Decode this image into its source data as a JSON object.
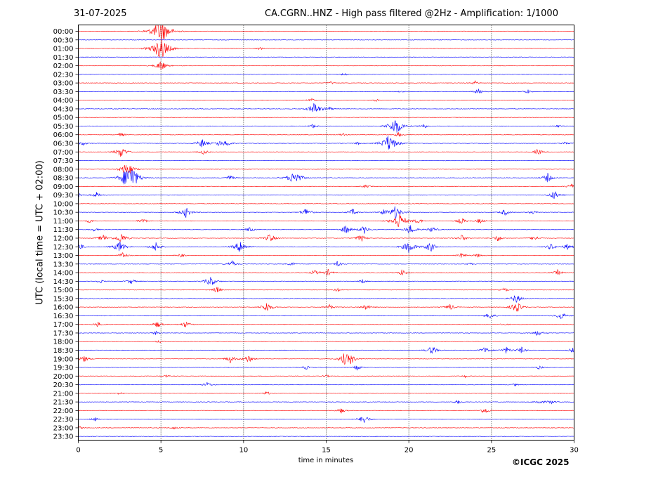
{
  "header": {
    "date": "31-07-2025",
    "title": "CA.CGRN..HNZ - High pass filtered @2Hz - Amplification: 1/1000"
  },
  "footer": {
    "copyright": "©ICGC 2025"
  },
  "colors": {
    "red_trace": "#ff0000",
    "blue_trace": "#0000ff",
    "axis": "#000000"
  },
  "chart_data": {
    "type": "line",
    "title": "CA.CGRN..HNZ - High pass filtered @2Hz - Amplification: 1/1000",
    "xlabel": "time in minutes",
    "ylabel": "UTC (local time = UTC + 02:00)",
    "xlim": [
      0,
      30
    ],
    "x_ticks": [
      0,
      5,
      10,
      15,
      20,
      25,
      30
    ],
    "x_tick_labels": [
      "0",
      "5",
      "10",
      "15",
      "20",
      "25",
      "30"
    ],
    "grid": "vertical dotted lines at 5-minute ticks",
    "y_tick_labels": [
      "00:00",
      "00:30",
      "01:00",
      "01:30",
      "02:00",
      "02:30",
      "03:00",
      "03:30",
      "04:00",
      "04:30",
      "05:00",
      "05:30",
      "06:00",
      "06:30",
      "07:00",
      "07:30",
      "08:00",
      "08:30",
      "09:00",
      "09:30",
      "10:00",
      "10:30",
      "11:00",
      "11:30",
      "12:00",
      "12:30",
      "13:00",
      "13:30",
      "14:00",
      "14:30",
      "15:00",
      "15:30",
      "16:00",
      "16:30",
      "17:00",
      "17:30",
      "18:00",
      "18:30",
      "19:00",
      "19:30",
      "20:00",
      "20:30",
      "21:00",
      "21:30",
      "22:00",
      "22:30",
      "23:00",
      "23:30"
    ],
    "trace_colors": "alternating red / blue per 30-minute row",
    "series": [
      {
        "time": "00:00",
        "events": [
          [
            5.0,
            20
          ]
        ]
      },
      {
        "time": "01:00",
        "events": [
          [
            5.0,
            18
          ],
          [
            11.0,
            2
          ]
        ]
      },
      {
        "time": "02:00",
        "events": [
          [
            5.0,
            8
          ]
        ]
      },
      {
        "time": "02:30",
        "events": [
          [
            16.1,
            2
          ]
        ]
      },
      {
        "time": "03:00",
        "events": [
          [
            15.3,
            2
          ],
          [
            24.0,
            3
          ]
        ]
      },
      {
        "time": "03:30",
        "events": [
          [
            19.5,
            1
          ],
          [
            24.2,
            4
          ],
          [
            27.2,
            3
          ]
        ]
      },
      {
        "time": "04:00",
        "events": [
          [
            14.1,
            3
          ],
          [
            18.0,
            2
          ]
        ]
      },
      {
        "time": "04:30",
        "events": [
          [
            14.3,
            10
          ],
          [
            15.2,
            3
          ]
        ]
      },
      {
        "time": "05:30",
        "events": [
          [
            14.2,
            3
          ],
          [
            19.2,
            14
          ],
          [
            20.9,
            4
          ],
          [
            29.0,
            2
          ]
        ]
      },
      {
        "time": "06:00",
        "events": [
          [
            2.6,
            3
          ],
          [
            16.0,
            2
          ],
          [
            19.4,
            4
          ]
        ]
      },
      {
        "time": "06:30",
        "events": [
          [
            0.3,
            3
          ],
          [
            7.5,
            7
          ],
          [
            8.5,
            4
          ],
          [
            9.0,
            5
          ],
          [
            16.9,
            2
          ],
          [
            18.8,
            14
          ],
          [
            29.5,
            3
          ]
        ]
      },
      {
        "time": "07:00",
        "events": [
          [
            2.6,
            9
          ],
          [
            7.6,
            4
          ],
          [
            27.8,
            5
          ]
        ]
      },
      {
        "time": "08:00",
        "events": [
          [
            2.8,
            8
          ],
          [
            3.2,
            6
          ]
        ]
      },
      {
        "time": "08:30",
        "events": [
          [
            2.9,
            12
          ],
          [
            3.3,
            14
          ],
          [
            9.2,
            4
          ],
          [
            13.1,
            12
          ],
          [
            28.4,
            7
          ]
        ]
      },
      {
        "time": "09:00",
        "events": [
          [
            17.4,
            3
          ],
          [
            29.8,
            4
          ]
        ]
      },
      {
        "time": "09:30",
        "events": [
          [
            0.1,
            3
          ],
          [
            1.1,
            4
          ],
          [
            28.8,
            7
          ]
        ]
      },
      {
        "time": "10:30",
        "events": [
          [
            6.5,
            8
          ],
          [
            13.8,
            7
          ],
          [
            16.6,
            5
          ],
          [
            18.5,
            4
          ],
          [
            19.2,
            10
          ],
          [
            25.8,
            5
          ],
          [
            27.5,
            3
          ]
        ]
      },
      {
        "time": "11:00",
        "events": [
          [
            0.7,
            3
          ],
          [
            3.9,
            4
          ],
          [
            19.4,
            13
          ],
          [
            20.6,
            4
          ],
          [
            23.2,
            5
          ],
          [
            24.3,
            4
          ]
        ]
      },
      {
        "time": "11:30",
        "events": [
          [
            1.0,
            3
          ],
          [
            10.4,
            4
          ],
          [
            16.2,
            7
          ],
          [
            17.3,
            6
          ],
          [
            20.1,
            8
          ],
          [
            21.4,
            5
          ]
        ]
      },
      {
        "time": "12:00",
        "events": [
          [
            1.5,
            6
          ],
          [
            2.6,
            8
          ],
          [
            11.6,
            7
          ],
          [
            17.1,
            6
          ],
          [
            23.2,
            5
          ],
          [
            25.4,
            5
          ],
          [
            27.6,
            4
          ]
        ]
      },
      {
        "time": "12:30",
        "events": [
          [
            0.1,
            5
          ],
          [
            2.5,
            9
          ],
          [
            4.7,
            7
          ],
          [
            9.8,
            10
          ],
          [
            20.0,
            10
          ],
          [
            21.3,
            8
          ],
          [
            28.6,
            5
          ],
          [
            29.6,
            5
          ]
        ]
      },
      {
        "time": "13:00",
        "events": [
          [
            2.7,
            5
          ],
          [
            6.2,
            3
          ],
          [
            23.2,
            4
          ],
          [
            24.2,
            3
          ]
        ]
      },
      {
        "time": "13:30",
        "events": [
          [
            9.3,
            5
          ],
          [
            12.9,
            3
          ],
          [
            15.7,
            4
          ],
          [
            23.7,
            2
          ]
        ]
      },
      {
        "time": "14:00",
        "events": [
          [
            14.3,
            4
          ],
          [
            15.1,
            5
          ],
          [
            19.6,
            5
          ],
          [
            29.0,
            4
          ]
        ]
      },
      {
        "time": "14:30",
        "events": [
          [
            1.3,
            3
          ],
          [
            3.2,
            4
          ],
          [
            8.0,
            8
          ],
          [
            17.2,
            3
          ]
        ]
      },
      {
        "time": "15:00",
        "events": [
          [
            8.4,
            5
          ],
          [
            15.7,
            3
          ],
          [
            25.8,
            3
          ]
        ]
      },
      {
        "time": "15:30",
        "events": [
          [
            26.5,
            7
          ]
        ]
      },
      {
        "time": "16:00",
        "events": [
          [
            11.4,
            8
          ],
          [
            15.2,
            4
          ],
          [
            17.4,
            5
          ],
          [
            22.5,
            5
          ],
          [
            26.5,
            9
          ]
        ]
      },
      {
        "time": "16:30",
        "events": [
          [
            24.9,
            5
          ],
          [
            29.2,
            6
          ]
        ]
      },
      {
        "time": "17:00",
        "events": [
          [
            1.2,
            4
          ],
          [
            4.8,
            5
          ],
          [
            6.5,
            5
          ],
          [
            25.8,
            2
          ]
        ]
      },
      {
        "time": "17:30",
        "events": [
          [
            4.7,
            3
          ],
          [
            27.8,
            5
          ]
        ]
      },
      {
        "time": "18:00",
        "events": [
          [
            4.9,
            2
          ]
        ]
      },
      {
        "time": "18:30",
        "events": [
          [
            21.4,
            7
          ],
          [
            24.6,
            5
          ],
          [
            25.9,
            5
          ],
          [
            26.8,
            5
          ],
          [
            29.9,
            4
          ]
        ]
      },
      {
        "time": "19:00",
        "events": [
          [
            0.3,
            6
          ],
          [
            9.2,
            6
          ],
          [
            10.3,
            6
          ],
          [
            16.1,
            8
          ],
          [
            16.5,
            7
          ]
        ]
      },
      {
        "time": "19:30",
        "events": [
          [
            13.8,
            3
          ],
          [
            16.9,
            4
          ],
          [
            27.9,
            3
          ]
        ]
      },
      {
        "time": "20:00",
        "events": [
          [
            5.3,
            2
          ],
          [
            15.0,
            2
          ],
          [
            23.4,
            2
          ]
        ]
      },
      {
        "time": "20:30",
        "events": [
          [
            7.8,
            4
          ],
          [
            26.4,
            2
          ]
        ]
      },
      {
        "time": "21:00",
        "events": [
          [
            2.5,
            2
          ],
          [
            11.4,
            3
          ]
        ]
      },
      {
        "time": "21:30",
        "events": [
          [
            23.0,
            3
          ],
          [
            27.9,
            4
          ],
          [
            28.6,
            3
          ]
        ]
      },
      {
        "time": "22:00",
        "events": [
          [
            15.9,
            4
          ],
          [
            24.6,
            5
          ]
        ]
      },
      {
        "time": "22:30",
        "events": [
          [
            1.0,
            3
          ],
          [
            17.3,
            7
          ]
        ]
      },
      {
        "time": "23:00",
        "events": [
          [
            0.1,
            2
          ],
          [
            5.8,
            2
          ]
        ]
      }
    ]
  }
}
